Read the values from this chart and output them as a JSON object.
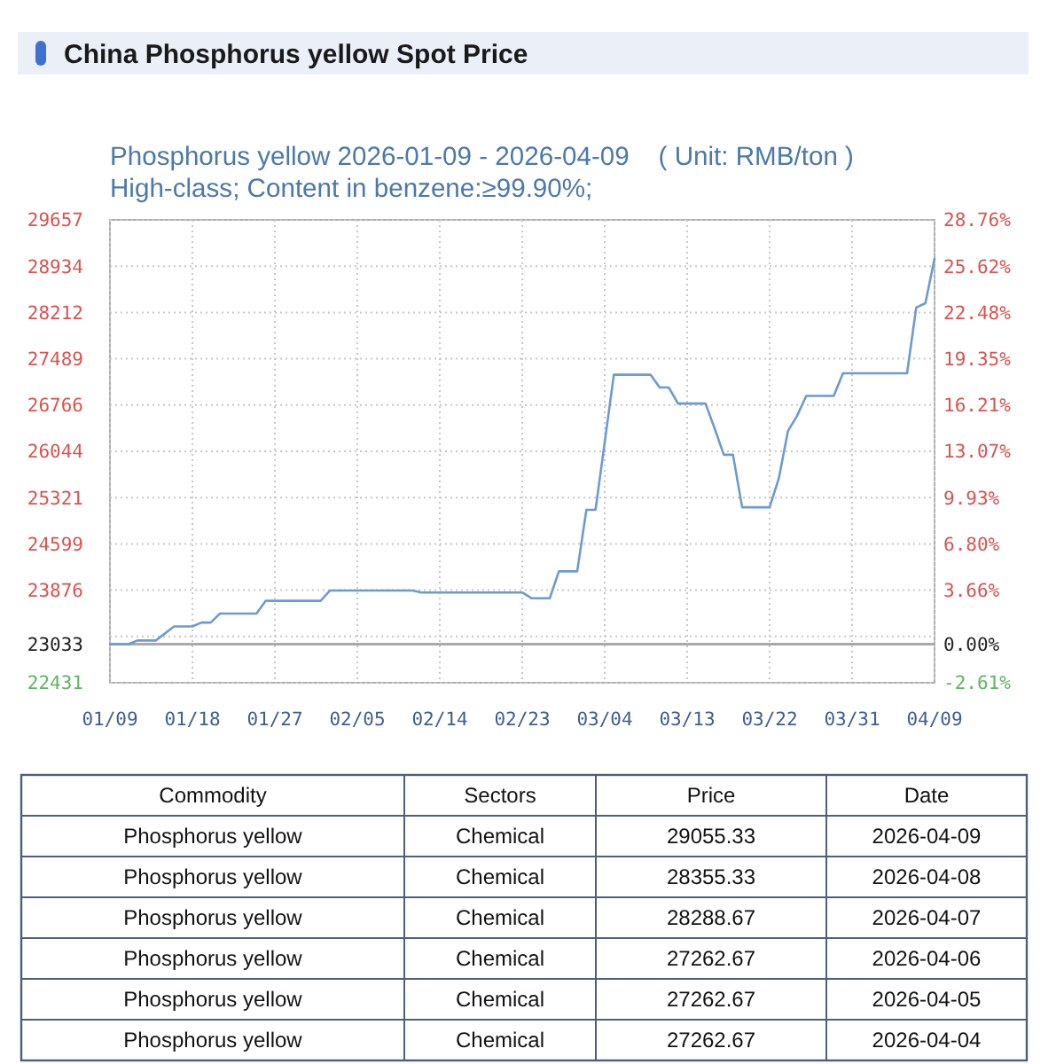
{
  "chart_data": [
    {
      "type": "line",
      "title": "China Phosphorus yellow Spot Price",
      "subtitle": "Phosphorus yellow 2026-01-09 - 2026-04-09    ( Unit: RMB/ton )\nHigh-class; Content in benzene:≥99.90%;",
      "x": [
        "2026-01-09",
        "2026-01-11",
        "2026-01-12",
        "2026-01-14",
        "2026-01-16",
        "2026-01-18",
        "2026-01-19",
        "2026-01-20",
        "2026-01-21",
        "2026-01-25",
        "2026-01-26",
        "2026-02-01",
        "2026-02-02",
        "2026-02-11",
        "2026-02-12",
        "2026-02-23",
        "2026-02-24",
        "2026-02-26",
        "2026-02-27",
        "2026-03-01",
        "2026-03-02",
        "2026-03-03",
        "2026-03-05",
        "2026-03-09",
        "2026-03-10",
        "2026-03-11",
        "2026-03-12",
        "2026-03-15",
        "2026-03-16",
        "2026-03-17",
        "2026-03-18",
        "2026-03-19",
        "2026-03-22",
        "2026-03-23",
        "2026-03-24",
        "2026-03-25",
        "2026-03-26",
        "2026-03-29",
        "2026-03-30",
        "2026-04-04",
        "2026-04-05",
        "2026-04-06",
        "2026-04-07",
        "2026-04-08",
        "2026-04-09"
      ],
      "values": [
        23033,
        23033,
        23090,
        23090,
        23310,
        23310,
        23370,
        23370,
        23510,
        23510,
        23710,
        23710,
        23870,
        23870,
        23840,
        23840,
        23750,
        23750,
        24170,
        24170,
        25130,
        25130,
        27240,
        27240,
        27040,
        27040,
        26790,
        26790,
        26400,
        25990,
        25990,
        25170,
        25170,
        25620,
        26360,
        26600,
        26910,
        26910,
        27262.67,
        27262.67,
        27262.67,
        27262.67,
        28288.67,
        28355.33,
        29055.33
      ],
      "color": "#6b9bd2",
      "xlim": [
        "2026-01-09",
        "2026-04-09"
      ],
      "xticks": [
        {
          "value": "2026-01-09",
          "label": "01/09"
        },
        {
          "value": "2026-01-18",
          "label": "01/18"
        },
        {
          "value": "2026-01-27",
          "label": "01/27"
        },
        {
          "value": "2026-02-05",
          "label": "02/05"
        },
        {
          "value": "2026-02-14",
          "label": "02/14"
        },
        {
          "value": "2026-02-23",
          "label": "02/23"
        },
        {
          "value": "2026-03-04",
          "label": "03/04"
        },
        {
          "value": "2026-03-13",
          "label": "03/13"
        },
        {
          "value": "2026-03-22",
          "label": "03/22"
        },
        {
          "value": "2026-03-31",
          "label": "03/31"
        },
        {
          "value": "2026-04-09",
          "label": "04/09"
        }
      ],
      "ylim": [
        22431,
        29657
      ],
      "yticks": [
        22431,
        23033,
        {
          "value": 23154,
          "label": null
        },
        23876,
        24599,
        25321,
        26044,
        26766,
        27489,
        28212,
        28934,
        29657
      ],
      "y2lim": [
        -2.61,
        28.76
      ],
      "y2ticks": [
        {
          "value": -2.61,
          "label": "-2.61%"
        },
        {
          "value": 0,
          "label": "0.00%"
        },
        {
          "value": 3.66,
          "label": "3.66%"
        },
        {
          "value": 6.8,
          "label": "6.80%"
        },
        {
          "value": 9.93,
          "label": "9.93%"
        },
        {
          "value": 13.07,
          "label": "13.07%"
        },
        {
          "value": 16.21,
          "label": "16.21%"
        },
        {
          "value": 19.35,
          "label": "19.35%"
        },
        {
          "value": 22.48,
          "label": "22.48%"
        },
        {
          "value": 25.62,
          "label": "25.62%"
        },
        {
          "value": 28.76,
          "label": "28.76%"
        }
      ],
      "ref_lines": [
        {
          "axis": "y",
          "value": 23033,
          "color": "#aaaaaa"
        }
      ],
      "grid": true
    },
    {
      "type": "other",
      "categories": [
        "Commodity",
        "Sectors",
        "Price",
        "Date"
      ],
      "cell_labels": [
        [
          "Phosphorus yellow",
          "Chemical",
          "29055.33",
          "2026-04-09"
        ],
        [
          "Phosphorus yellow",
          "Chemical",
          "28355.33",
          "2026-04-08"
        ],
        [
          "Phosphorus yellow",
          "Chemical",
          "28288.67",
          "2026-04-07"
        ],
        [
          "Phosphorus yellow",
          "Chemical",
          "27262.67",
          "2026-04-06"
        ],
        [
          "Phosphorus yellow",
          "Chemical",
          "27262.67",
          "2026-04-05"
        ],
        [
          "Phosphorus yellow",
          "Chemical",
          "27262.67",
          "2026-04-04"
        ]
      ]
    }
  ]
}
